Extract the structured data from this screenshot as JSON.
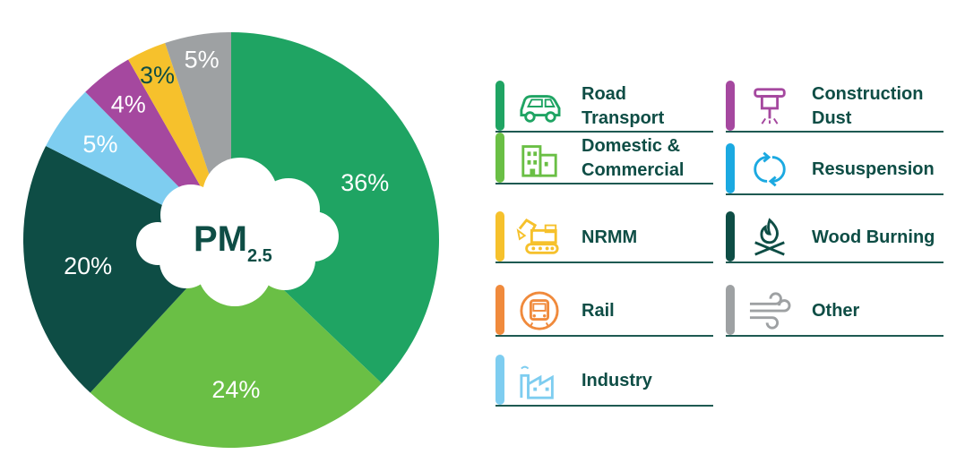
{
  "chart_data": {
    "type": "pie",
    "center_label": {
      "main": "PM",
      "sub": "2.5"
    },
    "slices": [
      {
        "name": "Road Transport",
        "value": 36,
        "label": "36%",
        "color": "#1fa463"
      },
      {
        "name": "Domestic & Commercial",
        "value": 24,
        "label": "24%",
        "color": "#6abf45"
      },
      {
        "name": "Wood Burning",
        "value": 20,
        "label": "20%",
        "color": "#0e4d45"
      },
      {
        "name": "Resuspension",
        "value": 5,
        "label": "5%",
        "color": "#7ecdf0"
      },
      {
        "name": "Construction Dust",
        "value": 4,
        "label": "4%",
        "color": "#a5489f"
      },
      {
        "name": "NRMM",
        "value": 3,
        "label": "3%",
        "color": "#f6c12c"
      },
      {
        "name": "Other",
        "value": 5,
        "label": "5%",
        "color": "#9ea1a3"
      }
    ]
  },
  "legend": [
    {
      "name": "Road Transport",
      "lines": [
        "Road",
        "Transport"
      ],
      "color": "#1fa463",
      "icon": "car-icon"
    },
    {
      "name": "Construction Dust",
      "lines": [
        "Construction",
        "Dust"
      ],
      "color": "#a5489f",
      "icon": "jackhammer-icon"
    },
    {
      "name": "Domestic & Commercial",
      "lines": [
        "Domestic &",
        "Commercial"
      ],
      "color": "#6abf45",
      "icon": "building-icon"
    },
    {
      "name": "Resuspension",
      "lines": [
        "Resuspension"
      ],
      "color": "#1ba9e1",
      "icon": "cycle-arrows-icon"
    },
    {
      "name": "NRMM",
      "lines": [
        "NRMM"
      ],
      "color": "#f6c12c",
      "icon": "excavator-icon"
    },
    {
      "name": "Wood Burning",
      "lines": [
        "Wood Burning"
      ],
      "color": "#0e4d45",
      "icon": "campfire-icon"
    },
    {
      "name": "Rail",
      "lines": [
        "Rail"
      ],
      "color": "#f08a3c",
      "icon": "train-icon"
    },
    {
      "name": "Other",
      "lines": [
        "Other"
      ],
      "color": "#9ea1a3",
      "icon": "wind-icon"
    },
    {
      "name": "Industry",
      "lines": [
        "Industry"
      ],
      "color": "#7ecdf0",
      "icon": "factory-icon"
    }
  ]
}
